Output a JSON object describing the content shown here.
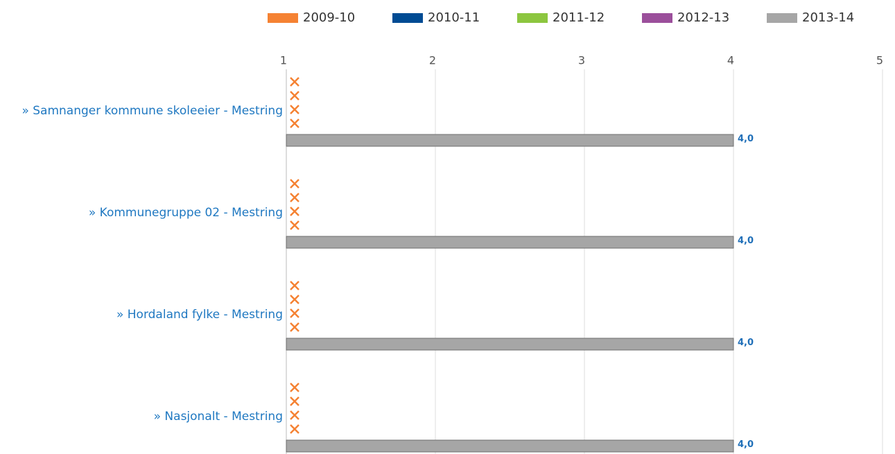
{
  "chart_data": {
    "type": "bar",
    "orientation": "horizontal",
    "categories": [
      "» Samnanger kommune skoleeier - Mestring",
      "» Kommunegruppe 02 - Mestring",
      "» Hordaland fylke - Mestring",
      "» Nasjonalt - Mestring"
    ],
    "series": [
      {
        "name": "2009-10",
        "color": "#f58233",
        "values": [
          null,
          null,
          null,
          null
        ]
      },
      {
        "name": "2010-11",
        "color": "#004b93",
        "values": [
          null,
          null,
          null,
          null
        ]
      },
      {
        "name": "2011-12",
        "color": "#8cc63f",
        "values": [
          null,
          null,
          null,
          null
        ]
      },
      {
        "name": "2012-13",
        "color": "#9b4f9b",
        "values": [
          null,
          null,
          null,
          null
        ]
      },
      {
        "name": "2013-14",
        "color": "#a6a6a6",
        "values": [
          4,
          4,
          4,
          4
        ],
        "value_labels": [
          "4,0",
          "4,0",
          "4,0",
          "4,0"
        ]
      }
    ],
    "missing_marker_color": "#f58233",
    "xlim": [
      1,
      5
    ],
    "xticks": [
      1,
      2,
      3,
      4,
      5
    ],
    "grid": true,
    "legend": "top"
  }
}
